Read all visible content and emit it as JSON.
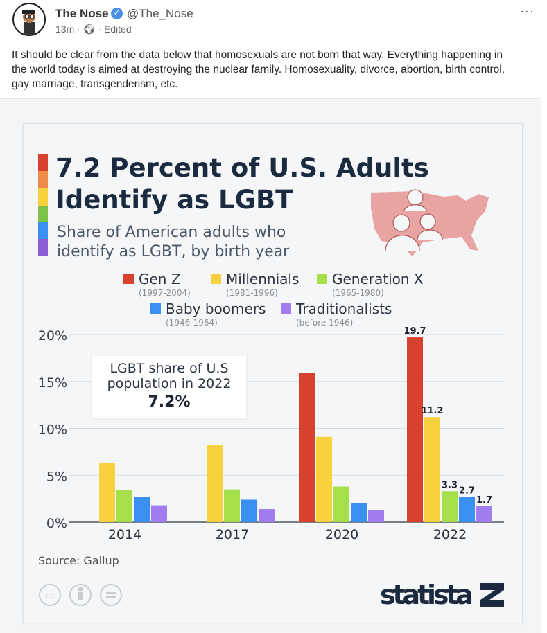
{
  "post": {
    "author": "The Nose",
    "handle": "@The_Nose",
    "time": "13m",
    "separator": "·",
    "edited": "Edited",
    "icons": [
      "verified-badge-icon",
      "globe-icon",
      "more-options-icon"
    ],
    "text": "It should be clear from the data below that homosexuals are not born that way. Everything happening in the world today is aimed at destroying the nuclear family. Homosexuality, divorce, abortion, birth control, gay marriage, transgenderism, etc."
  },
  "colors": {
    "gen_z": "#d9412f",
    "millennials": "#f7d23e",
    "gen_x": "#a5e04a",
    "boomers": "#3a8ff0",
    "traditionalists": "#a07cf0",
    "title": "#1b2a3e",
    "logo": "#1b2a3e"
  },
  "chart_data": {
    "type": "bar",
    "title": "7.2 Percent of U.S. Adults Identify as LGBT",
    "title_line1": "7.2 Percent of U.S. Adults",
    "title_line2": "Identify as LGBT",
    "subtitle_line1": "Share of American adults who",
    "subtitle_line2": "identify as LGBT, by birth year",
    "categories": [
      "2014",
      "2017",
      "2020",
      "2022"
    ],
    "ylim": [
      0,
      20
    ],
    "yticks": [
      "0%",
      "5%",
      "10%",
      "15%",
      "20%"
    ],
    "ytick_values": [
      0,
      5,
      10,
      15,
      20
    ],
    "grid": true,
    "legend_placement": "top",
    "series": [
      {
        "name": "Gen Z",
        "range": "(1997-2004)",
        "values": [
          null,
          null,
          15.9,
          19.7
        ]
      },
      {
        "name": "Millennials",
        "range": "(1981-1996)",
        "values": [
          6.3,
          8.2,
          9.1,
          11.2
        ]
      },
      {
        "name": "Generation X",
        "range": "(1965-1980)",
        "values": [
          3.4,
          3.5,
          3.8,
          3.3
        ]
      },
      {
        "name": "Baby boomers",
        "range": "(1946-1964)",
        "values": [
          2.7,
          2.4,
          2.0,
          2.7
        ]
      },
      {
        "name": "Traditionalists",
        "range": "(before 1946)",
        "values": [
          1.8,
          1.4,
          1.3,
          1.7
        ]
      }
    ],
    "data_labels_2022": [
      "19.7",
      "11.2",
      "3.3",
      "2.7",
      "1.7"
    ],
    "annotation_line1": "LGBT share of U.S",
    "annotation_line2": "population in 2022",
    "annotation_value": "7.2%",
    "source": "Source: Gallup",
    "logo": "statista",
    "license_icons": [
      "cc-icon",
      "attribution-icon",
      "no-derivatives-icon"
    ]
  }
}
